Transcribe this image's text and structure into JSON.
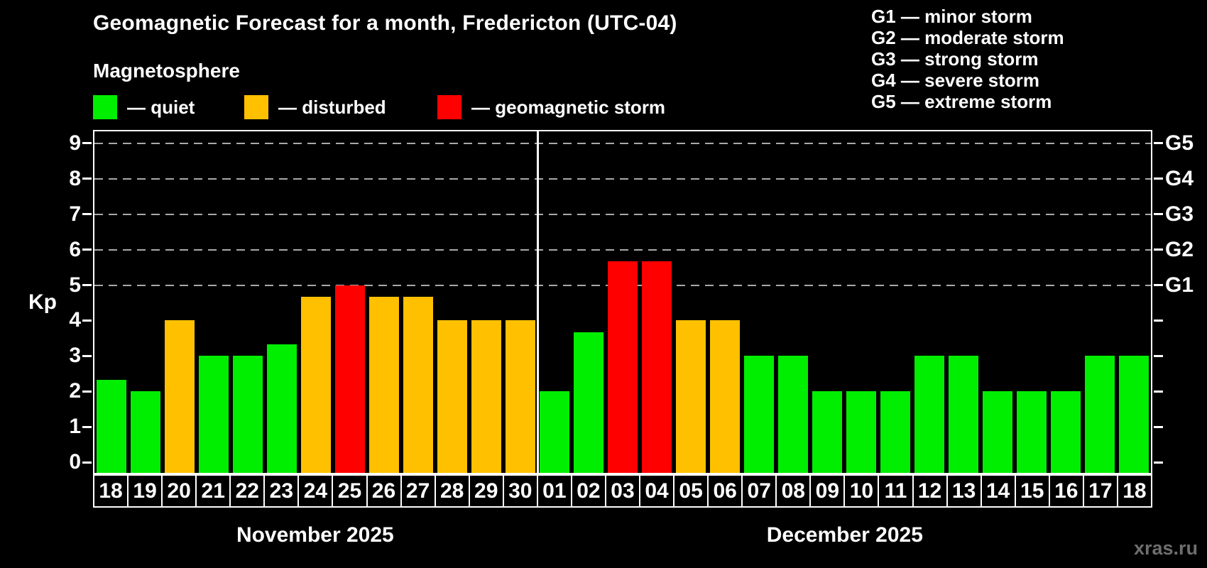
{
  "header": {
    "title": "Geomagnetic Forecast for a month, Fredericton (UTC-04)",
    "subtitle": "Magnetosphere",
    "legend": [
      {
        "name": "quiet",
        "label": "— quiet",
        "color": "#00ee00"
      },
      {
        "name": "disturbed",
        "label": "— disturbed",
        "color": "#ffc000"
      },
      {
        "name": "storm",
        "label": "— geomagnetic storm",
        "color": "#ff0000"
      }
    ]
  },
  "storm_scale_legend": [
    "G1 — minor storm",
    "G2 — moderate storm",
    "G3 — strong storm",
    "G4 — severe storm",
    "G5 — extreme storm"
  ],
  "watermark": "xras.ru",
  "chart_data": {
    "type": "bar",
    "ylabel": "Kp",
    "ylim": [
      -0.35,
      9.3
    ],
    "yticks": [
      0,
      1,
      2,
      3,
      4,
      5,
      6,
      7,
      8,
      9
    ],
    "gridlines_at": [
      5,
      6,
      7,
      8,
      9
    ],
    "grid": "dashed, horizontal, at Kp 5-9 only",
    "legend_position": "top",
    "right_axis_labels": [
      {
        "kp": 5,
        "label": "G1"
      },
      {
        "kp": 6,
        "label": "G2"
      },
      {
        "kp": 7,
        "label": "G3"
      },
      {
        "kp": 8,
        "label": "G4"
      },
      {
        "kp": 9,
        "label": "G5"
      }
    ],
    "status_colors": {
      "quiet": "#00ee00",
      "disturbed": "#ffc000",
      "storm": "#ff0000"
    },
    "months": [
      {
        "label": "November 2025",
        "days": [
          {
            "day": "18",
            "kp": 2.33,
            "status": "quiet"
          },
          {
            "day": "19",
            "kp": 2.0,
            "status": "quiet"
          },
          {
            "day": "20",
            "kp": 4.0,
            "status": "disturbed"
          },
          {
            "day": "21",
            "kp": 3.0,
            "status": "quiet"
          },
          {
            "day": "22",
            "kp": 3.0,
            "status": "quiet"
          },
          {
            "day": "23",
            "kp": 3.33,
            "status": "quiet"
          },
          {
            "day": "24",
            "kp": 4.67,
            "status": "disturbed"
          },
          {
            "day": "25",
            "kp": 5.0,
            "status": "storm"
          },
          {
            "day": "26",
            "kp": 4.67,
            "status": "disturbed"
          },
          {
            "day": "27",
            "kp": 4.67,
            "status": "disturbed"
          },
          {
            "day": "28",
            "kp": 4.0,
            "status": "disturbed"
          },
          {
            "day": "29",
            "kp": 4.0,
            "status": "disturbed"
          },
          {
            "day": "30",
            "kp": 4.0,
            "status": "disturbed"
          }
        ]
      },
      {
        "label": "December 2025",
        "days": [
          {
            "day": "01",
            "kp": 2.0,
            "status": "quiet"
          },
          {
            "day": "02",
            "kp": 3.67,
            "status": "quiet"
          },
          {
            "day": "03",
            "kp": 5.67,
            "status": "storm"
          },
          {
            "day": "04",
            "kp": 5.67,
            "status": "storm"
          },
          {
            "day": "05",
            "kp": 4.0,
            "status": "disturbed"
          },
          {
            "day": "06",
            "kp": 4.0,
            "status": "disturbed"
          },
          {
            "day": "07",
            "kp": 3.0,
            "status": "quiet"
          },
          {
            "day": "08",
            "kp": 3.0,
            "status": "quiet"
          },
          {
            "day": "09",
            "kp": 2.0,
            "status": "quiet"
          },
          {
            "day": "10",
            "kp": 2.0,
            "status": "quiet"
          },
          {
            "day": "11",
            "kp": 2.0,
            "status": "quiet"
          },
          {
            "day": "12",
            "kp": 3.0,
            "status": "quiet"
          },
          {
            "day": "13",
            "kp": 3.0,
            "status": "quiet"
          },
          {
            "day": "14",
            "kp": 2.0,
            "status": "quiet"
          },
          {
            "day": "15",
            "kp": 2.0,
            "status": "quiet"
          },
          {
            "day": "16",
            "kp": 2.0,
            "status": "quiet"
          },
          {
            "day": "17",
            "kp": 3.0,
            "status": "quiet"
          },
          {
            "day": "18",
            "kp": 3.0,
            "status": "quiet"
          }
        ]
      }
    ]
  }
}
